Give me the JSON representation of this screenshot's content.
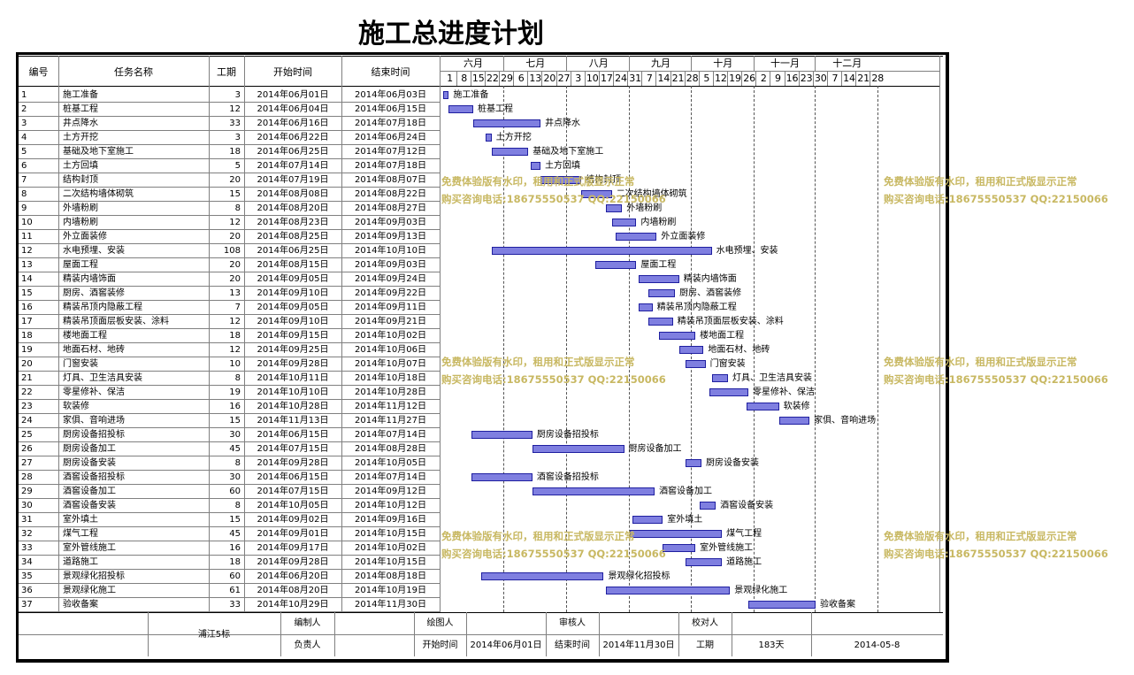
{
  "title": "施工总进度计划",
  "headers": {
    "no": "编号",
    "name": "任务名称",
    "days": "工期",
    "start": "开始时间",
    "end": "结束时间"
  },
  "months": [
    "六月",
    "七月",
    "八月",
    "九月",
    "十月",
    "十一月",
    "十二月"
  ],
  "weeks": [
    "1",
    "8",
    "15",
    "22",
    "29",
    "6",
    "13",
    "20",
    "27",
    "3",
    "10",
    "17",
    "24",
    "31",
    "7",
    "14",
    "21",
    "28",
    "5",
    "12",
    "19",
    "26",
    "2",
    "9",
    "16",
    "23",
    "30",
    "7",
    "14",
    "21",
    "28"
  ],
  "tasks": [
    {
      "no": "1",
      "name": "施工准备",
      "days": "3",
      "start": "2014年06月01日",
      "end": "2014年06月03日"
    },
    {
      "no": "2",
      "name": "桩基工程",
      "days": "12",
      "start": "2014年06月04日",
      "end": "2014年06月15日"
    },
    {
      "no": "3",
      "name": "井点降水",
      "days": "33",
      "start": "2014年06月16日",
      "end": "2014年07月18日"
    },
    {
      "no": "4",
      "name": "土方开挖",
      "days": "3",
      "start": "2014年06月22日",
      "end": "2014年06月24日"
    },
    {
      "no": "5",
      "name": "基础及地下室施工",
      "days": "18",
      "start": "2014年06月25日",
      "end": "2014年07月12日"
    },
    {
      "no": "6",
      "name": "土方回填",
      "days": "5",
      "start": "2014年07月14日",
      "end": "2014年07月18日"
    },
    {
      "no": "7",
      "name": "结构封顶",
      "days": "20",
      "start": "2014年07月19日",
      "end": "2014年08月07日"
    },
    {
      "no": "8",
      "name": "二次结构墙体砌筑",
      "days": "15",
      "start": "2014年08月08日",
      "end": "2014年08月22日"
    },
    {
      "no": "9",
      "name": "外墙粉刷",
      "days": "8",
      "start": "2014年08月20日",
      "end": "2014年08月27日"
    },
    {
      "no": "10",
      "name": "内墙粉刷",
      "days": "12",
      "start": "2014年08月23日",
      "end": "2014年09月03日"
    },
    {
      "no": "11",
      "name": "外立面装修",
      "days": "20",
      "start": "2014年08月25日",
      "end": "2014年09月13日"
    },
    {
      "no": "12",
      "name": "水电预埋、安装",
      "days": "108",
      "start": "2014年06月25日",
      "end": "2014年10月10日"
    },
    {
      "no": "13",
      "name": "屋面工程",
      "days": "20",
      "start": "2014年08月15日",
      "end": "2014年09月03日"
    },
    {
      "no": "14",
      "name": "精装内墙饰面",
      "days": "20",
      "start": "2014年09月05日",
      "end": "2014年09月24日"
    },
    {
      "no": "15",
      "name": "厨房、酒窖装修",
      "days": "13",
      "start": "2014年09月10日",
      "end": "2014年09月22日"
    },
    {
      "no": "16",
      "name": "精装吊顶内隐蔽工程",
      "days": "7",
      "start": "2014年09月05日",
      "end": "2014年09月11日"
    },
    {
      "no": "17",
      "name": "精装吊顶面层板安装、涂料",
      "days": "12",
      "start": "2014年09月10日",
      "end": "2014年09月21日"
    },
    {
      "no": "18",
      "name": "楼地面工程",
      "days": "18",
      "start": "2014年09月15日",
      "end": "2014年10月02日"
    },
    {
      "no": "19",
      "name": "地面石材、地砖",
      "days": "12",
      "start": "2014年09月25日",
      "end": "2014年10月06日"
    },
    {
      "no": "20",
      "name": "门窗安装",
      "days": "10",
      "start": "2014年09月28日",
      "end": "2014年10月07日"
    },
    {
      "no": "21",
      "name": "灯具、卫生洁具安装",
      "days": "8",
      "start": "2014年10月11日",
      "end": "2014年10月18日"
    },
    {
      "no": "22",
      "name": "零星修补、保洁",
      "days": "19",
      "start": "2014年10月10日",
      "end": "2014年10月28日"
    },
    {
      "no": "23",
      "name": "软装修",
      "days": "16",
      "start": "2014年10月28日",
      "end": "2014年11月12日"
    },
    {
      "no": "24",
      "name": "家俱、音响进场",
      "days": "15",
      "start": "2014年11月13日",
      "end": "2014年11月27日"
    },
    {
      "no": "25",
      "name": "厨房设备招投标",
      "days": "30",
      "start": "2014年06月15日",
      "end": "2014年07月14日"
    },
    {
      "no": "26",
      "name": "厨房设备加工",
      "days": "45",
      "start": "2014年07月15日",
      "end": "2014年08月28日"
    },
    {
      "no": "27",
      "name": "厨房设备安装",
      "days": "8",
      "start": "2014年09月28日",
      "end": "2014年10月05日"
    },
    {
      "no": "28",
      "name": "酒窖设备招投标",
      "days": "30",
      "start": "2014年06月15日",
      "end": "2014年07月14日"
    },
    {
      "no": "29",
      "name": "酒窖设备加工",
      "days": "60",
      "start": "2014年07月15日",
      "end": "2014年09月12日"
    },
    {
      "no": "30",
      "name": "酒窖设备安装",
      "days": "8",
      "start": "2014年10月05日",
      "end": "2014年10月12日"
    },
    {
      "no": "31",
      "name": "室外填土",
      "days": "15",
      "start": "2014年09月02日",
      "end": "2014年09月16日"
    },
    {
      "no": "32",
      "name": "煤气工程",
      "days": "45",
      "start": "2014年09月01日",
      "end": "2014年10月15日"
    },
    {
      "no": "33",
      "name": "室外管线施工",
      "days": "16",
      "start": "2014年09月17日",
      "end": "2014年10月02日"
    },
    {
      "no": "34",
      "name": "道路施工",
      "days": "18",
      "start": "2014年09月28日",
      "end": "2014年10月15日"
    },
    {
      "no": "35",
      "name": "景观绿化招投标",
      "days": "60",
      "start": "2014年06月20日",
      "end": "2014年08月18日"
    },
    {
      "no": "36",
      "name": "景观绿化施工",
      "days": "61",
      "start": "2014年08月20日",
      "end": "2014年10月19日"
    },
    {
      "no": "37",
      "name": "验收备案",
      "days": "33",
      "start": "2014年10月29日",
      "end": "2014年11月30日"
    }
  ],
  "footer": {
    "project": "浦江5标",
    "compiler": "编制人",
    "drawer": "绘图人",
    "reviewer": "审核人",
    "checker": "校对人",
    "responsible": "负责人",
    "start_label": "开始时间",
    "start_value": "2014年06月01日",
    "end_label": "结束时间",
    "end_value": "2014年11月30日",
    "duration_label": "工期",
    "duration_value": "183天",
    "date": "2014-05-8"
  },
  "watermark": {
    "line1": "免费体验版有水印，租用和正式版显示正常",
    "line2": "购买咨询电话:18675550537 QQ:22150066"
  },
  "colors": {
    "bar_fill": "#7f7fe0",
    "bar_border": "#1f1fa0",
    "watermark": "#c8b862"
  }
}
